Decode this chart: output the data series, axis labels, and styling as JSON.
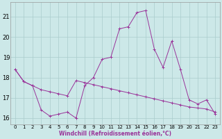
{
  "x": [
    0,
    1,
    2,
    3,
    4,
    5,
    6,
    7,
    8,
    9,
    10,
    11,
    12,
    13,
    14,
    15,
    16,
    17,
    18,
    19,
    20,
    21,
    22,
    23
  ],
  "line1_y": [
    18.4,
    17.8,
    17.6,
    17.4,
    17.3,
    17.2,
    17.1,
    17.85,
    17.75,
    17.65,
    17.55,
    17.45,
    17.35,
    17.25,
    17.15,
    17.05,
    16.95,
    16.85,
    16.75,
    16.65,
    16.55,
    16.5,
    16.45,
    16.3
  ],
  "line2_y": [
    18.4,
    17.8,
    17.6,
    16.4,
    16.1,
    16.2,
    16.3,
    16.0,
    17.6,
    18.0,
    18.9,
    19.0,
    20.4,
    20.5,
    21.2,
    21.3,
    19.4,
    18.5,
    19.8,
    18.4,
    16.9,
    16.7,
    16.9,
    16.2
  ],
  "line_color": "#993399",
  "bg_color": "#cce8e8",
  "grid_color": "#aacccc",
  "xlabel": "Windchill (Refroidissement éolien,°C)",
  "ylim": [
    15.7,
    21.7
  ],
  "xlim": [
    -0.5,
    23.5
  ],
  "yticks": [
    16,
    17,
    18,
    19,
    20,
    21
  ],
  "xticks": [
    0,
    1,
    2,
    3,
    4,
    5,
    6,
    7,
    8,
    9,
    10,
    11,
    12,
    13,
    14,
    15,
    16,
    17,
    18,
    19,
    20,
    21,
    22,
    23
  ]
}
